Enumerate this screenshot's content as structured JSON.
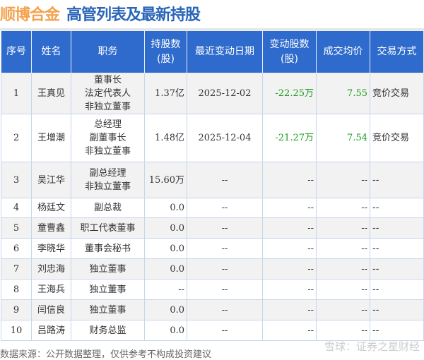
{
  "title": {
    "company": "顺博合金",
    "subtitle": "高管列表及最新持股"
  },
  "table": {
    "headers": [
      "序号",
      "姓名",
      "职务",
      "持股数\n(股)",
      "最近变动日期",
      "变动股数\n(股)",
      "成交均价",
      "交易方式"
    ],
    "rows": [
      [
        "1",
        "王真见",
        "董事长\n法定代表人\n非独立董事",
        "1.37亿",
        "2025-12-02",
        "-22.25万",
        "7.55",
        "竞价交易"
      ],
      [
        "2",
        "王增潮",
        "总经理\n副董事长\n非独立董事",
        "1.48亿",
        "2025-12-04",
        "-21.27万",
        "7.54",
        "竞价交易"
      ],
      [
        "3",
        "吴江华",
        "副总经理\n非独立董事",
        "15.60万",
        "--",
        "--",
        "--",
        "--"
      ],
      [
        "4",
        "杨廷文",
        "副总裁",
        "0.0",
        "--",
        "--",
        "--",
        "--"
      ],
      [
        "5",
        "童曹鑫",
        "职工代表董事",
        "0.0",
        "--",
        "--",
        "--",
        "--"
      ],
      [
        "6",
        "李晓华",
        "董事会秘书",
        "0.0",
        "--",
        "--",
        "--",
        "--"
      ],
      [
        "7",
        "刘忠海",
        "独立董事",
        "0.0",
        "--",
        "--",
        "--",
        "--"
      ],
      [
        "8",
        "王海兵",
        "独立董事",
        "--",
        "--",
        "--",
        "--",
        "--"
      ],
      [
        "9",
        "闫信良",
        "独立董事",
        "0.0",
        "--",
        "--",
        "--",
        "--"
      ],
      [
        "10",
        "吕路涛",
        "财务总监",
        "0.0",
        "--",
        "--",
        "--",
        "--"
      ]
    ]
  },
  "footer": {
    "source": "数据来源：公开数据整理，仅供参考不构成投资建议",
    "watermark": "雪球：证券之星财经"
  },
  "colors": {
    "header": "#2f6bcc",
    "company": "#f5a24e",
    "subtitle": "#2a66b8",
    "negative": "#1a9a1a"
  }
}
